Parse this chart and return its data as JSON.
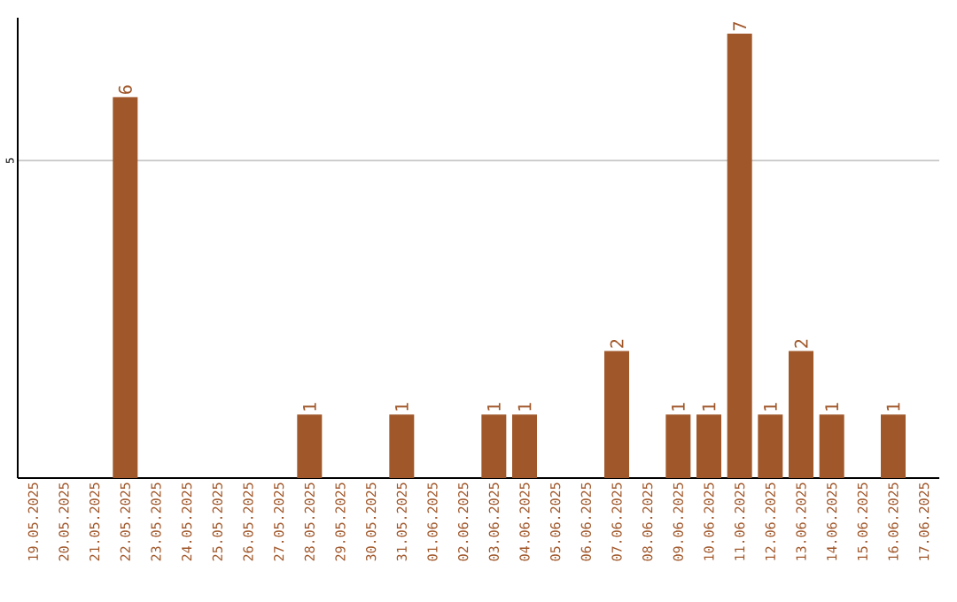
{
  "chart_data": {
    "type": "bar",
    "categories": [
      "19.05.2025",
      "20.05.2025",
      "21.05.2025",
      "22.05.2025",
      "23.05.2025",
      "24.05.2025",
      "25.05.2025",
      "26.05.2025",
      "27.05.2025",
      "28.05.2025",
      "29.05.2025",
      "30.05.2025",
      "31.05.2025",
      "01.06.2025",
      "02.06.2025",
      "03.06.2025",
      "04.06.2025",
      "05.06.2025",
      "06.06.2025",
      "07.06.2025",
      "08.06.2025",
      "09.06.2025",
      "10.06.2025",
      "11.06.2025",
      "12.06.2025",
      "13.06.2025",
      "14.06.2025",
      "15.06.2025",
      "16.06.2025",
      "17.06.2025"
    ],
    "values": [
      0,
      0,
      0,
      6,
      0,
      0,
      0,
      0,
      0,
      1,
      0,
      0,
      1,
      0,
      0,
      1,
      1,
      0,
      0,
      2,
      0,
      1,
      1,
      7,
      1,
      2,
      1,
      0,
      1,
      0
    ],
    "value_labels": [
      null,
      null,
      null,
      "6",
      null,
      null,
      null,
      null,
      null,
      "1",
      null,
      null,
      "1",
      null,
      null,
      "1",
      "1",
      null,
      null,
      "2",
      null,
      "1",
      "1",
      "7",
      "1",
      "2",
      "1",
      null,
      "1",
      null
    ],
    "color": "#a0572a",
    "ylim": [
      0,
      7.25
    ],
    "yticks": [
      5
    ],
    "grid": "y"
  }
}
